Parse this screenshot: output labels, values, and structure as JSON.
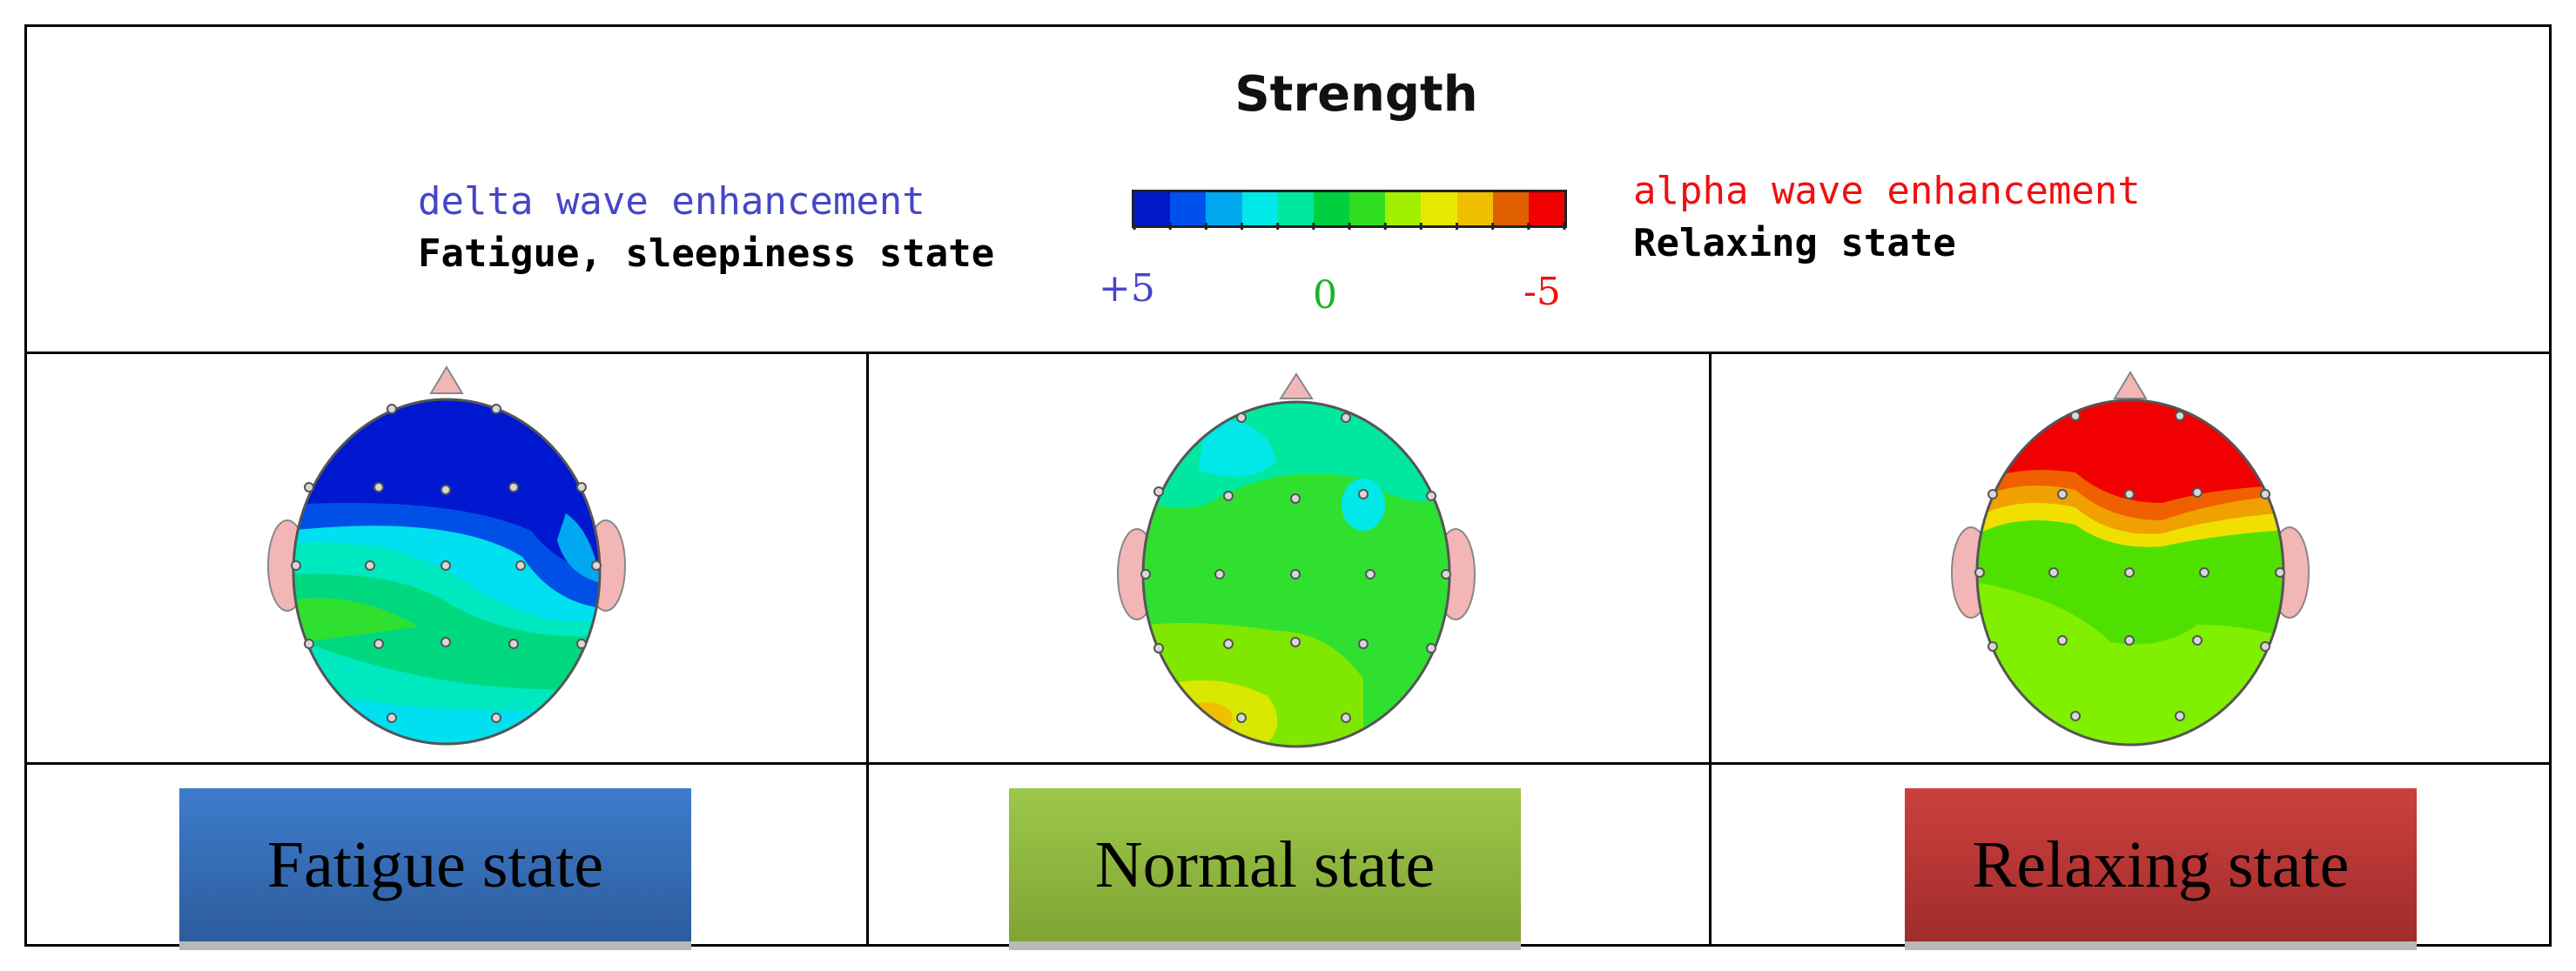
{
  "legend": {
    "title": "Strength",
    "left_line1": "delta wave enhancement",
    "left_line2": "Fatigue, sleepiness state",
    "right_line1": "alpha wave enhancement",
    "right_line2": "Relaxing state",
    "scale_min_label": "+5",
    "scale_mid_label": "0",
    "scale_max_label": "-5",
    "colorbar": [
      "#0018c8",
      "#0050f0",
      "#00a8f0",
      "#00e8e8",
      "#00e8a0",
      "#00d040",
      "#30e020",
      "#a0f000",
      "#e8e800",
      "#f0c000",
      "#e06000",
      "#f00000"
    ]
  },
  "colors": {
    "delta": "#4646c8",
    "alpha": "#f01010",
    "zero": "#18b428",
    "ear": "#f2b6b6"
  },
  "states": [
    {
      "label": "Fatigue state",
      "color_top": "#3e7ccc",
      "color_bottom": "#2c5c9c"
    },
    {
      "label": "Normal state",
      "color_top": "#9cc84a",
      "color_bottom": "#80a434"
    },
    {
      "label": "Relaxing state",
      "color_top": "#cc403c",
      "color_bottom": "#a02c2c"
    }
  ]
}
